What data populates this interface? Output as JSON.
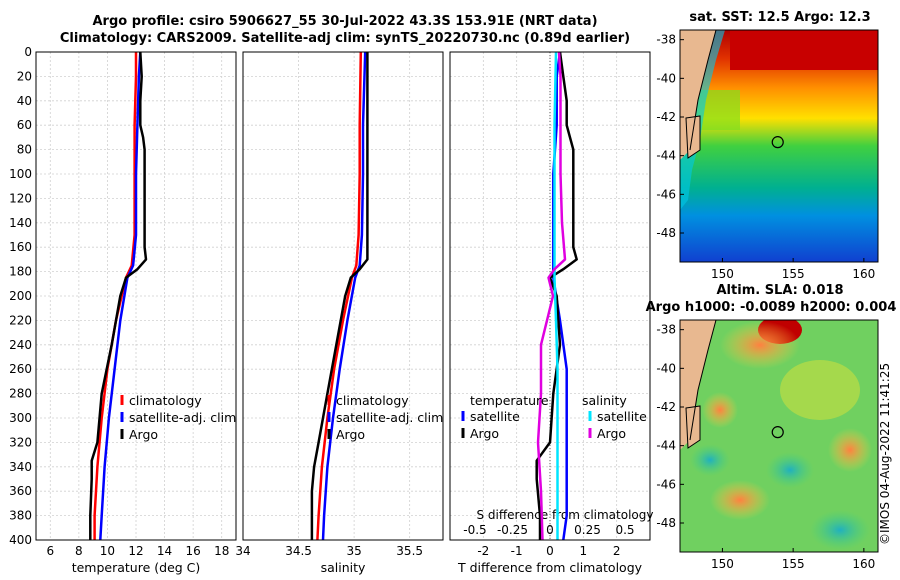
{
  "header": {
    "title_line1": "Argo profile: csiro 5906627_55 30-Jul-2022 43.3S 153.91E (NRT data)",
    "title_line2": "Climatology: CARS2009. Satellite-adj clim: synTS_20220730.nc (0.89d earlier)"
  },
  "footer": {
    "stamp": "©IMOS 04-Aug-2022 11:41:25"
  },
  "colors": {
    "climatology": "#ff0000",
    "satellite": "#0000ff",
    "argo": "#000000",
    "cyan": "#00e5ff",
    "magenta": "#e000e0"
  },
  "chart_data": [
    {
      "type": "line",
      "name": "temperature-profile",
      "xlabel": "temperature (deg C)",
      "ylabel": "",
      "xlim": [
        5,
        19
      ],
      "ylim": [
        400,
        0
      ],
      "xticks": [
        "6",
        "8",
        "10",
        "12",
        "14",
        "16",
        "18"
      ],
      "yticks": [
        "0",
        "20",
        "40",
        "60",
        "80",
        "100",
        "120",
        "140",
        "160",
        "180",
        "200",
        "220",
        "240",
        "260",
        "280",
        "300",
        "320",
        "340",
        "360",
        "380",
        "400"
      ],
      "legend": [
        "climatology",
        "satellite-adj. clim",
        "Argo"
      ],
      "series": [
        {
          "name": "climatology",
          "depth": [
            0,
            20,
            60,
            100,
            150,
            175,
            185,
            220,
            260,
            300,
            340,
            380,
            400
          ],
          "values": [
            12.0,
            12.0,
            11.9,
            11.9,
            11.9,
            11.7,
            11.3,
            10.6,
            10.0,
            9.6,
            9.3,
            9.1,
            9.1
          ]
        },
        {
          "name": "satellite-adj. clim",
          "depth": [
            0,
            20,
            60,
            100,
            150,
            175,
            185,
            220,
            260,
            300,
            340,
            380,
            400
          ],
          "values": [
            12.3,
            12.2,
            12.1,
            12.0,
            12.0,
            11.8,
            11.4,
            10.9,
            10.5,
            10.1,
            9.8,
            9.6,
            9.5
          ]
        },
        {
          "name": "Argo",
          "depth": [
            0,
            20,
            40,
            60,
            70,
            80,
            100,
            120,
            140,
            160,
            170,
            178,
            185,
            200,
            240,
            280,
            320,
            335,
            350,
            380,
            400
          ],
          "values": [
            12.3,
            12.4,
            12.3,
            12.3,
            12.5,
            12.6,
            12.6,
            12.6,
            12.6,
            12.6,
            12.7,
            12.1,
            11.3,
            10.9,
            10.3,
            9.6,
            9.3,
            8.9,
            8.9,
            8.8,
            8.8
          ]
        }
      ]
    },
    {
      "type": "line",
      "name": "salinity-profile",
      "xlabel": "salinity",
      "ylabel": "",
      "xlim": [
        34,
        35.8
      ],
      "ylim": [
        400,
        0
      ],
      "xticks": [
        "34",
        "34.5",
        "35",
        "35.5"
      ],
      "legend": [
        "climatology",
        "satellite-adj. clim",
        "Argo"
      ],
      "series": [
        {
          "name": "climatology",
          "depth": [
            0,
            60,
            100,
            150,
            175,
            185,
            220,
            260,
            300,
            340,
            380,
            400
          ],
          "values": [
            35.06,
            35.05,
            35.05,
            35.04,
            35.02,
            34.98,
            34.9,
            34.82,
            34.76,
            34.71,
            34.68,
            34.67
          ]
        },
        {
          "name": "satellite-adj. clim",
          "depth": [
            0,
            60,
            100,
            150,
            175,
            185,
            220,
            260,
            300,
            340,
            380,
            400
          ],
          "values": [
            35.1,
            35.08,
            35.08,
            35.07,
            35.05,
            35.01,
            34.94,
            34.87,
            34.81,
            34.76,
            34.73,
            34.72
          ]
        },
        {
          "name": "Argo",
          "depth": [
            0,
            20,
            60,
            100,
            140,
            170,
            178,
            185,
            200,
            240,
            280,
            320,
            340,
            360,
            400
          ],
          "values": [
            35.12,
            35.12,
            35.12,
            35.12,
            35.12,
            35.12,
            35.05,
            34.97,
            34.92,
            34.84,
            34.76,
            34.68,
            34.64,
            34.62,
            34.62
          ]
        }
      ]
    },
    {
      "type": "line",
      "name": "difference-profile",
      "xlabel": "T difference from climatology",
      "x2label": "S difference from climatology",
      "xlim": [
        -3,
        3
      ],
      "ylim": [
        400,
        0
      ],
      "xticks": [
        "-2",
        "-1",
        "0",
        "1",
        "2"
      ],
      "x2ticks": [
        "-0.5",
        "-0.25",
        "0",
        "0.25",
        "0.5"
      ],
      "legend": [
        "temperature",
        "salinity",
        "satellite",
        "satellite",
        "Argo",
        "Argo"
      ],
      "series": [
        {
          "name": "temperature satellite",
          "depth": [
            0,
            20,
            60,
            100,
            150,
            175,
            185,
            220,
            260,
            300,
            340,
            380,
            400
          ],
          "values": [
            0.3,
            0.2,
            0.2,
            0.1,
            0.1,
            0.1,
            0.1,
            0.3,
            0.5,
            0.5,
            0.5,
            0.5,
            0.4
          ]
        },
        {
          "name": "temperature Argo",
          "depth": [
            0,
            20,
            40,
            60,
            70,
            80,
            100,
            120,
            140,
            160,
            170,
            178,
            185,
            200,
            240,
            280,
            320,
            335,
            350,
            380,
            400
          ],
          "values": [
            0.3,
            0.4,
            0.5,
            0.5,
            0.6,
            0.7,
            0.7,
            0.7,
            0.7,
            0.7,
            0.8,
            0.4,
            0.0,
            0.2,
            0.3,
            0.1,
            0.0,
            -0.4,
            -0.4,
            -0.3,
            -0.3
          ]
        },
        {
          "name": "salinity satellite",
          "depth": [
            0,
            60,
            100,
            150,
            175,
            185,
            220,
            260,
            300,
            340,
            380,
            400
          ],
          "values": [
            0.04,
            0.03,
            0.03,
            0.03,
            0.03,
            0.03,
            0.04,
            0.05,
            0.05,
            0.05,
            0.05,
            0.05
          ]
        },
        {
          "name": "salinity Argo",
          "depth": [
            0,
            20,
            60,
            100,
            140,
            170,
            178,
            185,
            200,
            240,
            280,
            320,
            340,
            360,
            400
          ],
          "values": [
            0.06,
            0.07,
            0.07,
            0.07,
            0.08,
            0.1,
            0.03,
            -0.01,
            0.02,
            -0.06,
            -0.06,
            -0.08,
            -0.07,
            -0.06,
            -0.05
          ]
        }
      ]
    },
    {
      "type": "heatmap",
      "name": "sst-map",
      "title": "sat. SST: 12.5 Argo: 12.3",
      "xticks": [
        "150",
        "155",
        "160"
      ],
      "yticks": [
        "-38",
        "-40",
        "-42",
        "-44",
        "-46",
        "-48"
      ],
      "xlim": [
        147,
        161
      ],
      "ylim": [
        -49.5,
        -37.5
      ],
      "marker": {
        "lon": 153.91,
        "lat": -43.3
      }
    },
    {
      "type": "heatmap",
      "name": "sla-map",
      "title_line1": "Altim. SLA: 0.018",
      "title_line2": "Argo h1000: -0.0089 h2000: 0.004",
      "xticks": [
        "150",
        "155",
        "160"
      ],
      "yticks": [
        "-38",
        "-40",
        "-42",
        "-44",
        "-46",
        "-48"
      ],
      "xlim": [
        147,
        161
      ],
      "ylim": [
        -49.5,
        -37.5
      ],
      "marker": {
        "lon": 153.91,
        "lat": -43.3
      }
    }
  ]
}
